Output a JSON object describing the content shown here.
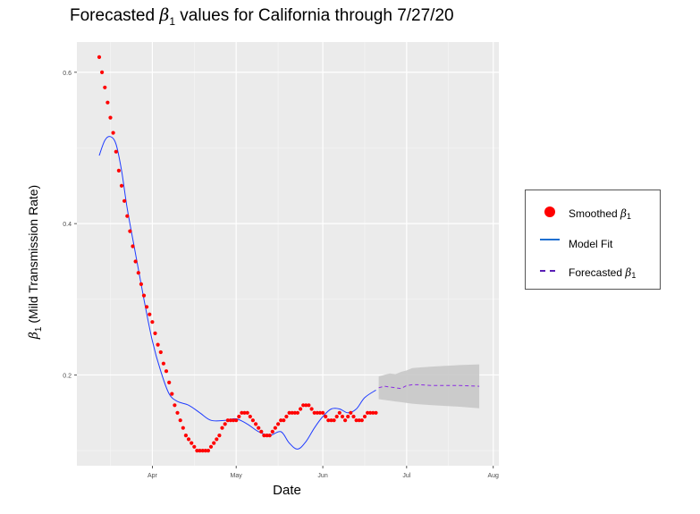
{
  "chart_data": {
    "type": "line",
    "title": "Forecasted β₁ values for California through 7/27/20",
    "title_main": "Forecasted ",
    "title_beta": "β",
    "title_sub": "1",
    "title_rest": " values for California through 7/27/20",
    "xlabel": "Date",
    "ylabel_beta": "β",
    "ylabel_sub": "1",
    "ylabel_rest": " (Mild Transmission Rate)",
    "x_ticks": [
      {
        "label": "Apr",
        "date": "2020-04-01"
      },
      {
        "label": "May",
        "date": "2020-05-01"
      },
      {
        "label": "Jun",
        "date": "2020-06-01"
      },
      {
        "label": "Jul",
        "date": "2020-07-01"
      },
      {
        "label": "Aug",
        "date": "2020-08-01"
      }
    ],
    "y_ticks": [
      0.2,
      0.4,
      0.6
    ],
    "xlim": [
      "2020-03-05",
      "2020-08-03"
    ],
    "ylim": [
      0.08,
      0.64
    ],
    "grid": true,
    "legend_position": "right",
    "colors": {
      "smoothed": "#ff0000",
      "fit": "#1f3cff",
      "forecast": "#8a2be2",
      "band": "#c8c8c8",
      "panel": "#ebebeb"
    },
    "series": [
      {
        "name": "Smoothed β₁",
        "kind": "points",
        "x": [
          "2020-03-13",
          "2020-03-14",
          "2020-03-15",
          "2020-03-16",
          "2020-03-17",
          "2020-03-18",
          "2020-03-19",
          "2020-03-20",
          "2020-03-21",
          "2020-03-22",
          "2020-03-23",
          "2020-03-24",
          "2020-03-25",
          "2020-03-26",
          "2020-03-27",
          "2020-03-28",
          "2020-03-29",
          "2020-03-30",
          "2020-03-31",
          "2020-04-01",
          "2020-04-02",
          "2020-04-03",
          "2020-04-04",
          "2020-04-05",
          "2020-04-06",
          "2020-04-07",
          "2020-04-08",
          "2020-04-09",
          "2020-04-10",
          "2020-04-11",
          "2020-04-12",
          "2020-04-13",
          "2020-04-14",
          "2020-04-15",
          "2020-04-16",
          "2020-04-17",
          "2020-04-18",
          "2020-04-19",
          "2020-04-20",
          "2020-04-21",
          "2020-04-22",
          "2020-04-23",
          "2020-04-24",
          "2020-04-25",
          "2020-04-26",
          "2020-04-27",
          "2020-04-28",
          "2020-04-29",
          "2020-04-30",
          "2020-05-01",
          "2020-05-02",
          "2020-05-03",
          "2020-05-04",
          "2020-05-05",
          "2020-05-06",
          "2020-05-07",
          "2020-05-08",
          "2020-05-09",
          "2020-05-10",
          "2020-05-11",
          "2020-05-12",
          "2020-05-13",
          "2020-05-14",
          "2020-05-15",
          "2020-05-16",
          "2020-05-17",
          "2020-05-18",
          "2020-05-19",
          "2020-05-20",
          "2020-05-21",
          "2020-05-22",
          "2020-05-23",
          "2020-05-24",
          "2020-05-25",
          "2020-05-26",
          "2020-05-27",
          "2020-05-28",
          "2020-05-29",
          "2020-05-30",
          "2020-05-31",
          "2020-06-01",
          "2020-06-02",
          "2020-06-03",
          "2020-06-04",
          "2020-06-05",
          "2020-06-06",
          "2020-06-07",
          "2020-06-08",
          "2020-06-09",
          "2020-06-10",
          "2020-06-11",
          "2020-06-12",
          "2020-06-13",
          "2020-06-14",
          "2020-06-15",
          "2020-06-16",
          "2020-06-17",
          "2020-06-18",
          "2020-06-19",
          "2020-06-20"
        ],
        "values": [
          0.62,
          0.6,
          0.58,
          0.56,
          0.54,
          0.52,
          0.495,
          0.47,
          0.45,
          0.43,
          0.41,
          0.39,
          0.37,
          0.35,
          0.335,
          0.32,
          0.305,
          0.29,
          0.28,
          0.27,
          0.255,
          0.24,
          0.23,
          0.215,
          0.205,
          0.19,
          0.175,
          0.16,
          0.15,
          0.14,
          0.13,
          0.12,
          0.115,
          0.11,
          0.105,
          0.1,
          0.1,
          0.1,
          0.1,
          0.1,
          0.105,
          0.11,
          0.115,
          0.12,
          0.13,
          0.135,
          0.14,
          0.14,
          0.14,
          0.14,
          0.145,
          0.15,
          0.15,
          0.15,
          0.145,
          0.14,
          0.135,
          0.13,
          0.125,
          0.12,
          0.12,
          0.12,
          0.125,
          0.13,
          0.135,
          0.14,
          0.14,
          0.145,
          0.15,
          0.15,
          0.15,
          0.15,
          0.155,
          0.16,
          0.16,
          0.16,
          0.155,
          0.15,
          0.15,
          0.15,
          0.15,
          0.145,
          0.14,
          0.14,
          0.14,
          0.145,
          0.15,
          0.145,
          0.14,
          0.145,
          0.15,
          0.145,
          0.14,
          0.14,
          0.14,
          0.145,
          0.15,
          0.15,
          0.15,
          0.15
        ]
      },
      {
        "name": "Model Fit",
        "kind": "line",
        "x": [
          "2020-03-13",
          "2020-03-15",
          "2020-03-17",
          "2020-03-19",
          "2020-03-21",
          "2020-03-23",
          "2020-03-26",
          "2020-03-29",
          "2020-04-01",
          "2020-04-04",
          "2020-04-07",
          "2020-04-10",
          "2020-04-14",
          "2020-04-18",
          "2020-04-22",
          "2020-04-27",
          "2020-05-01",
          "2020-05-05",
          "2020-05-09",
          "2020-05-13",
          "2020-05-17",
          "2020-05-20",
          "2020-05-23",
          "2020-05-26",
          "2020-05-29",
          "2020-06-01",
          "2020-06-04",
          "2020-06-07",
          "2020-06-10",
          "2020-06-13",
          "2020-06-16",
          "2020-06-20"
        ],
        "values": [
          0.49,
          0.51,
          0.515,
          0.505,
          0.47,
          0.42,
          0.36,
          0.3,
          0.245,
          0.205,
          0.175,
          0.165,
          0.16,
          0.15,
          0.14,
          0.14,
          0.142,
          0.135,
          0.125,
          0.12,
          0.125,
          0.11,
          0.102,
          0.112,
          0.13,
          0.145,
          0.155,
          0.155,
          0.15,
          0.155,
          0.17,
          0.18
        ]
      },
      {
        "name": "Forecasted β₁",
        "kind": "dashed-line",
        "x": [
          "2020-06-21",
          "2020-06-23",
          "2020-06-25",
          "2020-06-27",
          "2020-06-29",
          "2020-07-01",
          "2020-07-03",
          "2020-07-06",
          "2020-07-10",
          "2020-07-15",
          "2020-07-20",
          "2020-07-27"
        ],
        "values": [
          0.183,
          0.185,
          0.184,
          0.183,
          0.182,
          0.186,
          0.187,
          0.187,
          0.186,
          0.186,
          0.186,
          0.185
        ],
        "band_lower": [
          0.168,
          0.167,
          0.166,
          0.165,
          0.164,
          0.163,
          0.162,
          0.161,
          0.16,
          0.159,
          0.158,
          0.156
        ],
        "band_upper": [
          0.198,
          0.2,
          0.202,
          0.201,
          0.204,
          0.206,
          0.209,
          0.21,
          0.211,
          0.212,
          0.213,
          0.214
        ]
      }
    ]
  },
  "legend": {
    "items": [
      {
        "key": "points",
        "beta": "β",
        "text": "Smoothed ",
        "sub": "1",
        "color": "#ff0000"
      },
      {
        "key": "line",
        "beta": "",
        "text": "Model Fit",
        "sub": "",
        "color": "#1f6fd0"
      },
      {
        "key": "dashed",
        "beta": "β",
        "text": "Forecasted ",
        "sub": "1",
        "color": "#5a1fb5"
      }
    ]
  }
}
